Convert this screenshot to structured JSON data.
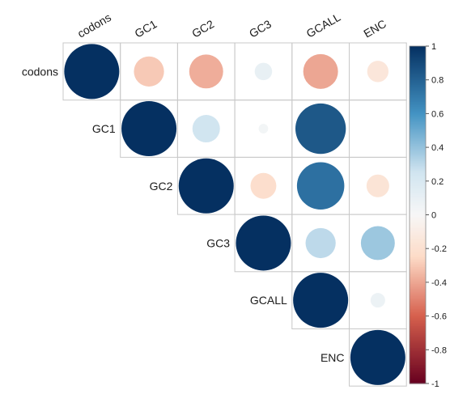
{
  "chart_data": {
    "type": "heatmap",
    "subtype": "correlation-upper-circle",
    "variables": [
      "codons",
      "GC1",
      "GC2",
      "GC3",
      "GCALL",
      "ENC"
    ],
    "matrix": [
      [
        1.0,
        -0.3,
        -0.38,
        0.1,
        -0.4,
        -0.15
      ],
      [
        -0.3,
        1.0,
        0.25,
        0.03,
        0.84,
        0.0
      ],
      [
        -0.38,
        0.25,
        1.0,
        -0.22,
        0.74,
        -0.17
      ],
      [
        0.1,
        0.03,
        -0.22,
        1.0,
        0.3,
        0.38
      ],
      [
        -0.4,
        0.84,
        0.74,
        0.3,
        1.0,
        0.07
      ],
      [
        -0.15,
        0.0,
        -0.17,
        0.38,
        0.07,
        1.0
      ]
    ],
    "colorbar": {
      "range": [
        -1,
        1
      ],
      "ticks": [
        "1",
        "0.8",
        "0.6",
        "0.4",
        "0.2",
        "0",
        "-0.2",
        "-0.4",
        "-0.6",
        "-0.8",
        "-1"
      ],
      "colors": {
        "neg_full": "#67001f",
        "neg_mid": "#d6604d",
        "neg_light": "#fddbc7",
        "zero": "#f7f7f7",
        "pos_light": "#d1e5f0",
        "pos_mid": "#4393c3",
        "pos_full": "#053061"
      }
    }
  }
}
